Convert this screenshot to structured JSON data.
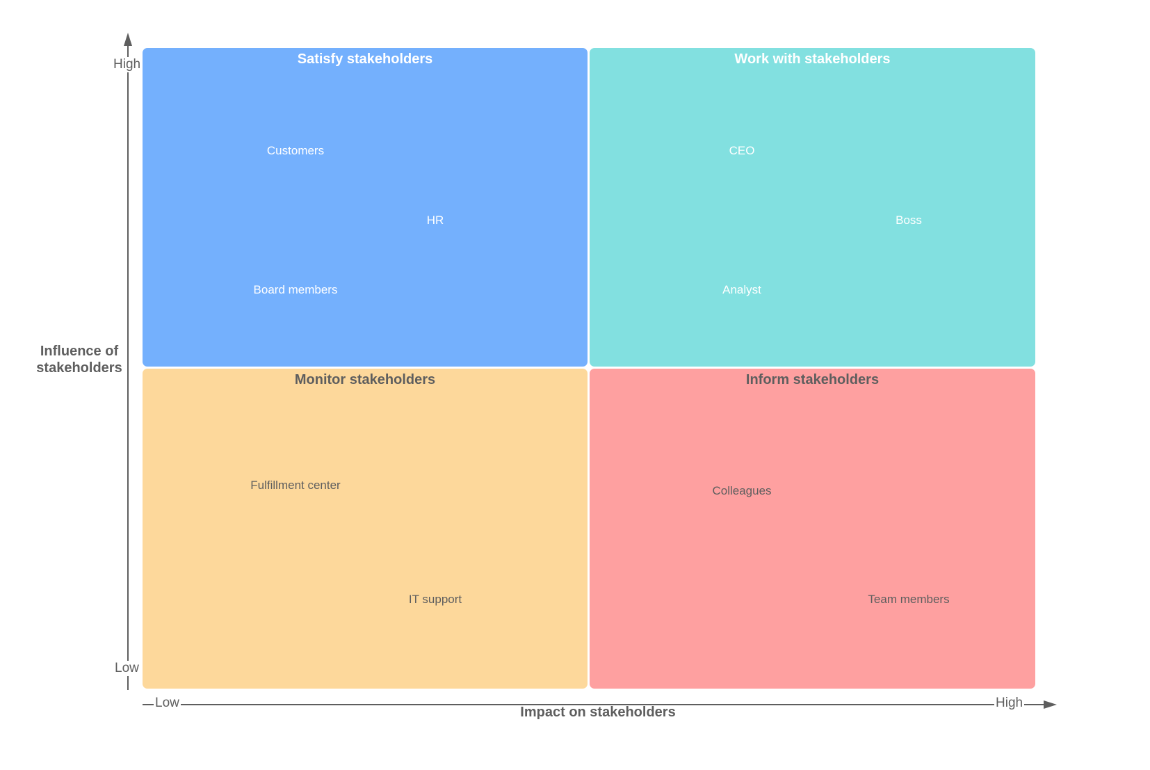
{
  "quadrants": {
    "satisfy": {
      "title": "Satisfy stakeholders",
      "color": "#74b0fd",
      "items": [
        "Customers",
        "HR",
        "Board members"
      ]
    },
    "work": {
      "title": "Work with stakeholders",
      "color": "#82e0e0",
      "items": [
        "CEO",
        "Boss",
        "Analyst"
      ]
    },
    "monitor": {
      "title": "Monitor stakeholders",
      "color": "#fdd89b",
      "items": [
        "Fulfillment center",
        "IT support"
      ]
    },
    "inform": {
      "title": "Inform stakeholders",
      "color": "#fea0a0",
      "items": [
        "Colleagues",
        "Team members"
      ]
    }
  },
  "axes": {
    "y_title": "Influence of stakeholders",
    "y_high": "High",
    "y_low": "Low",
    "x_title": "Impact on stakeholders",
    "x_low": "Low",
    "x_high": "High",
    "color": "#5e5e5e"
  }
}
